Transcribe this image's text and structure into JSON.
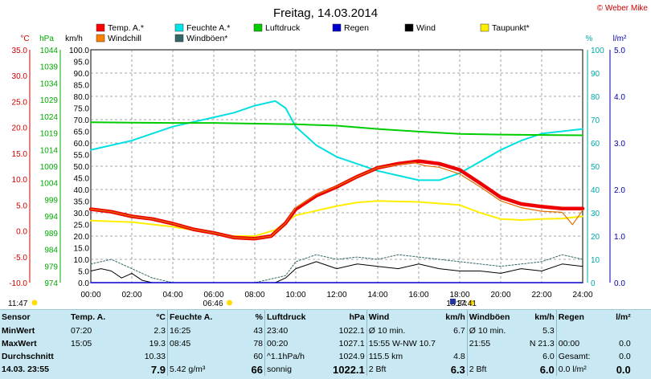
{
  "header": {
    "title": "Freitag, 14.03.2014",
    "credit": "© Weber Mike"
  },
  "axes": {
    "left_units": [
      "°C",
      "hPa",
      "km/h"
    ],
    "right_units": [
      "%",
      "l/m²"
    ],
    "temp_ticks": [
      "35.0",
      "30.0",
      "25.0",
      "20.0",
      "15.0",
      "10.0",
      "5.0",
      "0.0",
      "-5.0",
      "-10.0"
    ],
    "hpa_ticks": [
      "1044",
      "1039",
      "1034",
      "1029",
      "1024",
      "1019",
      "1014",
      "1009",
      "1004",
      "999",
      "994",
      "989",
      "984",
      "979",
      "974"
    ],
    "kmh_ticks": [
      "100.0",
      "95.0",
      "90.0",
      "85.0",
      "80.0",
      "75.0",
      "70.0",
      "65.0",
      "60.0",
      "55.0",
      "50.0",
      "45.0",
      "40.0",
      "35.0",
      "30.0",
      "25.0",
      "20.0",
      "15.0",
      "10.0",
      "5.0",
      "0.0"
    ],
    "pct_ticks": [
      "100",
      "90",
      "80",
      "70",
      "60",
      "50",
      "40",
      "30",
      "20",
      "10",
      "0"
    ],
    "rain_ticks": [
      "5.0",
      "4.0",
      "3.0",
      "2.0",
      "1.0",
      "0.0"
    ],
    "time_ticks": [
      "00:00",
      "02:00",
      "04:00",
      "06:00",
      "08:00",
      "10:00",
      "12:00",
      "14:00",
      "16:00",
      "18:00",
      "20:00",
      "22:00",
      "24:00"
    ],
    "sunrise": "06:46",
    "sunset": "18:34",
    "moonrise": "11:47",
    "moonset": "17:41"
  },
  "legend": [
    {
      "label": "Temp. A.*",
      "color": "#ff0000"
    },
    {
      "label": "Feuchte A.*",
      "color": "#00e5e5"
    },
    {
      "label": "Luftdruck",
      "color": "#00cc00"
    },
    {
      "label": "Regen",
      "color": "#0000cc"
    },
    {
      "label": "Wind",
      "color": "#000000"
    },
    {
      "label": "Taupunkt*",
      "color": "#ffee00"
    },
    {
      "label": "Windchill",
      "color": "#ff8000"
    },
    {
      "label": "Windböen*",
      "color": "#336666"
    }
  ],
  "chart_data": {
    "type": "line",
    "title": "Freitag, 14.03.2014",
    "x_unit": "hours",
    "xlim": [
      0,
      24
    ],
    "ylim_temp": [
      -10,
      35
    ],
    "ylim_hpa": [
      974,
      1044
    ],
    "ylim_kmh": [
      0,
      100
    ],
    "ylim_pct": [
      0,
      100
    ],
    "ylim_rain": [
      0,
      5
    ],
    "series": [
      {
        "name": "Temp. A.*",
        "axis": "temp",
        "points": [
          [
            0,
            4.2
          ],
          [
            1,
            3.7
          ],
          [
            2,
            2.8
          ],
          [
            3,
            2.3
          ],
          [
            4,
            1.4
          ],
          [
            5,
            0.3
          ],
          [
            6,
            -0.4
          ],
          [
            7,
            -1.3
          ],
          [
            8,
            -1.5
          ],
          [
            8.8,
            -1.0
          ],
          [
            9.5,
            1.5
          ],
          [
            10,
            4.2
          ],
          [
            11,
            6.8
          ],
          [
            12,
            8.5
          ],
          [
            13,
            10.5
          ],
          [
            14,
            12.2
          ],
          [
            15,
            13.0
          ],
          [
            16,
            13.5
          ],
          [
            17,
            13.0
          ],
          [
            18,
            11.8
          ],
          [
            19,
            9.2
          ],
          [
            20,
            6.5
          ],
          [
            21,
            5.2
          ],
          [
            22,
            4.7
          ],
          [
            23,
            4.3
          ],
          [
            24,
            4.3
          ]
        ]
      },
      {
        "name": "Windchill",
        "axis": "temp",
        "points": [
          [
            0,
            4.2
          ],
          [
            1,
            3.7
          ],
          [
            2,
            2.8
          ],
          [
            3,
            2.3
          ],
          [
            4,
            1.4
          ],
          [
            5,
            0.3
          ],
          [
            6,
            -0.4
          ],
          [
            7,
            -1.3
          ],
          [
            8,
            -1.5
          ],
          [
            8.8,
            -1.0
          ],
          [
            9.5,
            1.5
          ],
          [
            10,
            4.5
          ],
          [
            11,
            7.0
          ],
          [
            12,
            8.6
          ],
          [
            13,
            10.5
          ],
          [
            14,
            12.2
          ],
          [
            15,
            12.8
          ],
          [
            15.8,
            13.2
          ],
          [
            16.3,
            12.6
          ],
          [
            17,
            12.3
          ],
          [
            18,
            11.0
          ],
          [
            19,
            8.5
          ],
          [
            20,
            5.8
          ],
          [
            21,
            4.5
          ],
          [
            22,
            3.8
          ],
          [
            23,
            3.6
          ],
          [
            23.5,
            1.2
          ],
          [
            24,
            4.0
          ]
        ]
      },
      {
        "name": "Feuchte A.*",
        "axis": "pct",
        "points": [
          [
            0,
            57
          ],
          [
            2,
            61
          ],
          [
            4,
            67
          ],
          [
            6,
            71
          ],
          [
            7,
            73
          ],
          [
            8,
            76
          ],
          [
            9,
            78
          ],
          [
            9.5,
            75
          ],
          [
            10,
            67
          ],
          [
            11,
            59
          ],
          [
            12,
            54
          ],
          [
            13,
            51
          ],
          [
            14,
            48
          ],
          [
            15,
            46
          ],
          [
            16,
            44
          ],
          [
            17,
            44
          ],
          [
            18,
            47
          ],
          [
            19,
            52
          ],
          [
            20,
            57
          ],
          [
            21,
            61
          ],
          [
            22,
            64
          ],
          [
            23,
            65
          ],
          [
            24,
            66
          ]
        ]
      },
      {
        "name": "Luftdruck",
        "axis": "hpa",
        "points": [
          [
            0,
            1022.2
          ],
          [
            2,
            1022.1
          ],
          [
            4,
            1022.0
          ],
          [
            6,
            1022.0
          ],
          [
            8,
            1021.8
          ],
          [
            10,
            1021.6
          ],
          [
            12,
            1021.2
          ],
          [
            14,
            1020.2
          ],
          [
            16,
            1019.4
          ],
          [
            18,
            1018.7
          ],
          [
            20,
            1018.5
          ],
          [
            22,
            1018.4
          ],
          [
            24,
            1018.3
          ]
        ]
      },
      {
        "name": "Taupunkt*",
        "axis": "temp",
        "points": [
          [
            0,
            2.0
          ],
          [
            2,
            1.7
          ],
          [
            4,
            0.8
          ],
          [
            6,
            -0.5
          ],
          [
            7,
            -1.0
          ],
          [
            8,
            -1.0
          ],
          [
            9,
            0.2
          ],
          [
            10,
            3.0
          ],
          [
            12,
            4.8
          ],
          [
            13,
            5.5
          ],
          [
            14,
            5.8
          ],
          [
            16,
            5.6
          ],
          [
            18,
            5.0
          ],
          [
            19,
            3.5
          ],
          [
            20,
            2.3
          ],
          [
            21,
            2.1
          ],
          [
            22,
            2.3
          ],
          [
            23,
            2.4
          ],
          [
            24,
            2.8
          ]
        ]
      },
      {
        "name": "Wind",
        "axis": "kmh",
        "points": [
          [
            0,
            5
          ],
          [
            0.5,
            6
          ],
          [
            1,
            5
          ],
          [
            1.5,
            2
          ],
          [
            2,
            4
          ],
          [
            2.5,
            1
          ],
          [
            3,
            0
          ],
          [
            5,
            0
          ],
          [
            7,
            0
          ],
          [
            9,
            0
          ],
          [
            9.5,
            2
          ],
          [
            10,
            6
          ],
          [
            11,
            9
          ],
          [
            12,
            6
          ],
          [
            13,
            8
          ],
          [
            14,
            7
          ],
          [
            15,
            6
          ],
          [
            16,
            8
          ],
          [
            17,
            6
          ],
          [
            18,
            5
          ],
          [
            19,
            5
          ],
          [
            20,
            4
          ],
          [
            21,
            6
          ],
          [
            22,
            5
          ],
          [
            23,
            8
          ],
          [
            24,
            7
          ]
        ]
      },
      {
        "name": "Windböen*",
        "axis": "kmh",
        "points": [
          [
            0,
            8
          ],
          [
            1,
            10
          ],
          [
            2,
            6
          ],
          [
            3,
            2
          ],
          [
            4,
            0
          ],
          [
            8,
            0
          ],
          [
            9.5,
            3
          ],
          [
            10,
            9
          ],
          [
            11,
            12
          ],
          [
            12,
            10
          ],
          [
            13,
            11
          ],
          [
            14,
            10
          ],
          [
            15,
            12
          ],
          [
            16,
            11
          ],
          [
            17,
            10
          ],
          [
            18,
            9
          ],
          [
            19,
            8
          ],
          [
            20,
            7
          ],
          [
            21,
            8
          ],
          [
            22,
            9
          ],
          [
            23,
            12
          ],
          [
            24,
            10
          ]
        ]
      },
      {
        "name": "Regen",
        "axis": "rain",
        "points": [
          [
            0,
            0
          ],
          [
            24,
            0
          ]
        ]
      }
    ]
  },
  "stats": {
    "headers": [
      "Sensor",
      "Temp. A.",
      "°C",
      "Feuchte A.",
      "%",
      "Luftdruck",
      "hPa",
      "Wind",
      "km/h",
      "Windböen",
      "km/h",
      "Regen",
      "l/m²"
    ],
    "rows": [
      [
        "MinWert",
        "07:20",
        "2.3",
        "16:25",
        "43",
        "23:40",
        "1022.1",
        "Ø 10 min.",
        "6.7",
        "Ø 10 min.",
        "5.3",
        "",
        ""
      ],
      [
        "MaxWert",
        "15:05",
        "19.3",
        "08:45",
        "78",
        "00:20",
        "1027.1",
        "15:55  W-NW 10.7",
        "",
        "21:55",
        "N 21.3",
        "00:00",
        "0.0"
      ],
      [
        "Durchschnitt",
        "",
        "10.33",
        "",
        "60",
        "^1.1hPa/h",
        "1024.9",
        "115.5 km",
        "4.8",
        "",
        "6.0",
        "Gesamt:",
        "0.0"
      ],
      [
        "14.03. 23:55",
        "",
        "7.9",
        "5.42 g/m³",
        "66",
        "sonnig",
        "1022.1",
        "2 Bft",
        "6.3",
        "2 Bft",
        "6.0",
        "0.0 l/m²",
        "0.0"
      ]
    ]
  }
}
